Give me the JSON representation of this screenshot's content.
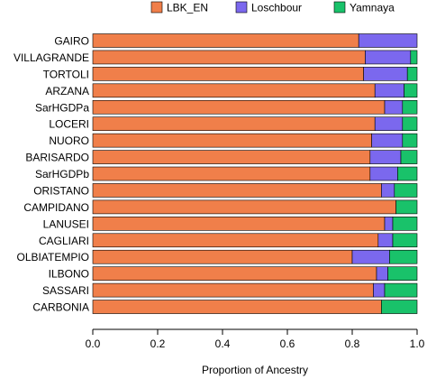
{
  "chart_data": {
    "type": "bar",
    "orientation": "horizontal",
    "stacked": true,
    "title": "",
    "xlabel": "Proportion of Ancestry",
    "ylabel": "",
    "xlim": [
      0,
      1
    ],
    "x_ticks": [
      "0.0",
      "0.2",
      "0.4",
      "0.6",
      "0.8",
      "1.0"
    ],
    "grid": false,
    "legend_position": "top",
    "categories": [
      "GAIRO",
      "VILLAGRANDE",
      "TORTOLI",
      "ARZANA",
      "SarHGDPa",
      "LOCERI",
      "NUORO",
      "BARISARDO",
      "SarHGDPb",
      "ORISTANO",
      "CAMPIDANO",
      "LANUSEI",
      "CAGLIARI",
      "OLBIATEMPIO",
      "ILBONO",
      "SASSARI",
      "CARBONIA"
    ],
    "series": [
      {
        "name": "LBK_EN",
        "color": "#f07f4a",
        "values": [
          0.82,
          0.84,
          0.835,
          0.87,
          0.9,
          0.87,
          0.86,
          0.855,
          0.855,
          0.89,
          0.935,
          0.9,
          0.88,
          0.8,
          0.875,
          0.865,
          0.89
        ]
      },
      {
        "name": "Loschbour",
        "color": "#7b68ee",
        "values": [
          0.18,
          0.14,
          0.135,
          0.09,
          0.055,
          0.085,
          0.095,
          0.095,
          0.085,
          0.04,
          0.0,
          0.025,
          0.045,
          0.115,
          0.035,
          0.035,
          0.0
        ]
      },
      {
        "name": "Yamnaya",
        "color": "#19c26a",
        "values": [
          0.0,
          0.02,
          0.03,
          0.04,
          0.045,
          0.045,
          0.045,
          0.05,
          0.06,
          0.07,
          0.065,
          0.075,
          0.075,
          0.085,
          0.09,
          0.1,
          0.11
        ]
      }
    ]
  }
}
